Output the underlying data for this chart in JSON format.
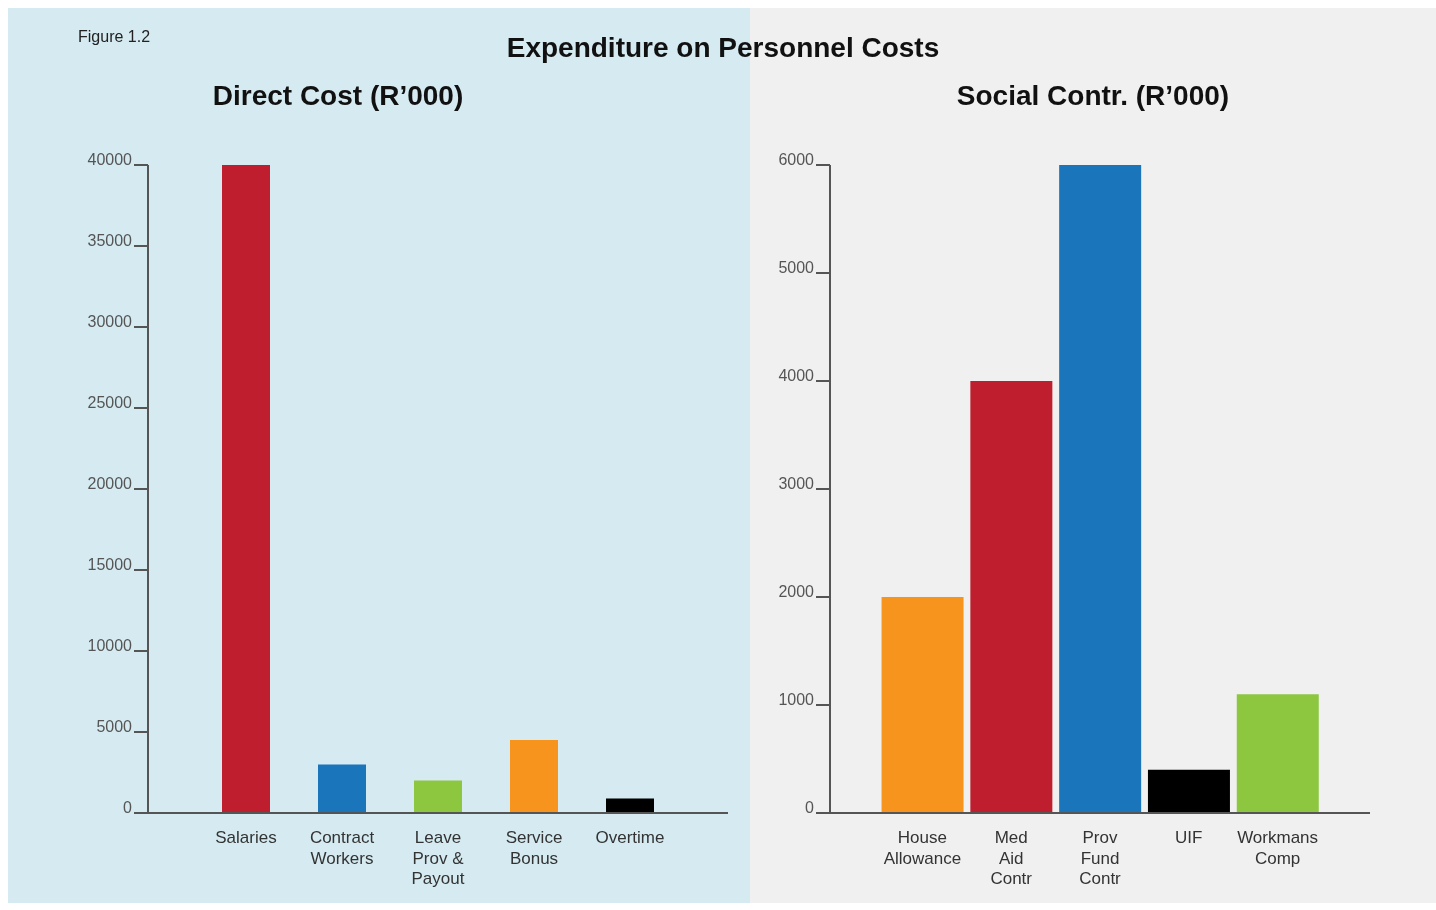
{
  "chart_data": [
    {
      "type": "bar",
      "title": "Direct Cost (R’000)",
      "annotations": [
        "Figure 1.2",
        "Expenditure on Personnel Costs"
      ],
      "categories": [
        "Salaries",
        "Contract Workers",
        "Leave Prov & Payout",
        "Service Bonus",
        "Overtime"
      ],
      "values": [
        40000,
        3000,
        2000,
        4500,
        900
      ],
      "colors": [
        "#be1e2d",
        "#1b75bb",
        "#8dc63f",
        "#f7941d",
        "#000000"
      ],
      "ylim": [
        0,
        40000
      ],
      "yticks": [
        0,
        5000,
        10000,
        15000,
        20000,
        25000,
        30000,
        35000,
        40000
      ],
      "grid": false,
      "legend": false
    },
    {
      "type": "bar",
      "title": "Social Contr. (R’000)",
      "categories": [
        "House Allowance",
        "Med Aid Contr",
        "Prov Fund Contr",
        "UIF",
        "Workmans Comp"
      ],
      "values": [
        2000,
        4000,
        6000,
        400,
        1100
      ],
      "colors": [
        "#f7941d",
        "#be1e2d",
        "#1b75bb",
        "#000000",
        "#8dc63f"
      ],
      "ylim": [
        0,
        6000
      ],
      "yticks": [
        0,
        1000,
        2000,
        3000,
        4000,
        5000,
        6000
      ],
      "grid": false,
      "legend": false
    }
  ]
}
